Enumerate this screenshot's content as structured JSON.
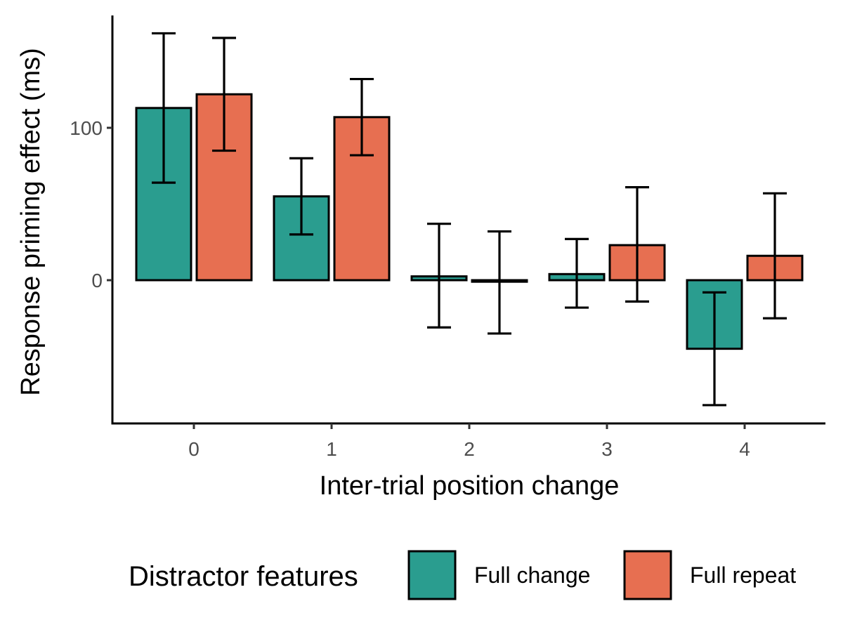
{
  "chart_data": {
    "type": "bar",
    "xlabel": "Inter-trial position change",
    "ylabel": "Response priming effect (ms)",
    "categories": [
      "0",
      "1",
      "2",
      "3",
      "4"
    ],
    "yticks": [
      0,
      100
    ],
    "ytick_labels": [
      "0",
      "100"
    ],
    "ylim": [
      -95,
      173
    ],
    "grid": false,
    "legend": {
      "title": "Distractor features",
      "position": "bottom"
    },
    "series": [
      {
        "name": "Full change",
        "color": "#2a9d8f",
        "values": [
          113,
          55,
          2.5,
          4,
          -45
        ],
        "error_low": [
          64,
          30,
          -31,
          -18,
          -82
        ],
        "error_high": [
          162,
          80,
          37,
          27,
          -8
        ]
      },
      {
        "name": "Full repeat",
        "color": "#e76f51",
        "values": [
          122,
          107,
          -1,
          23,
          16
        ],
        "error_low": [
          85,
          82,
          -35,
          -14,
          -25
        ],
        "error_high": [
          159,
          132,
          32,
          61,
          57
        ]
      }
    ]
  }
}
